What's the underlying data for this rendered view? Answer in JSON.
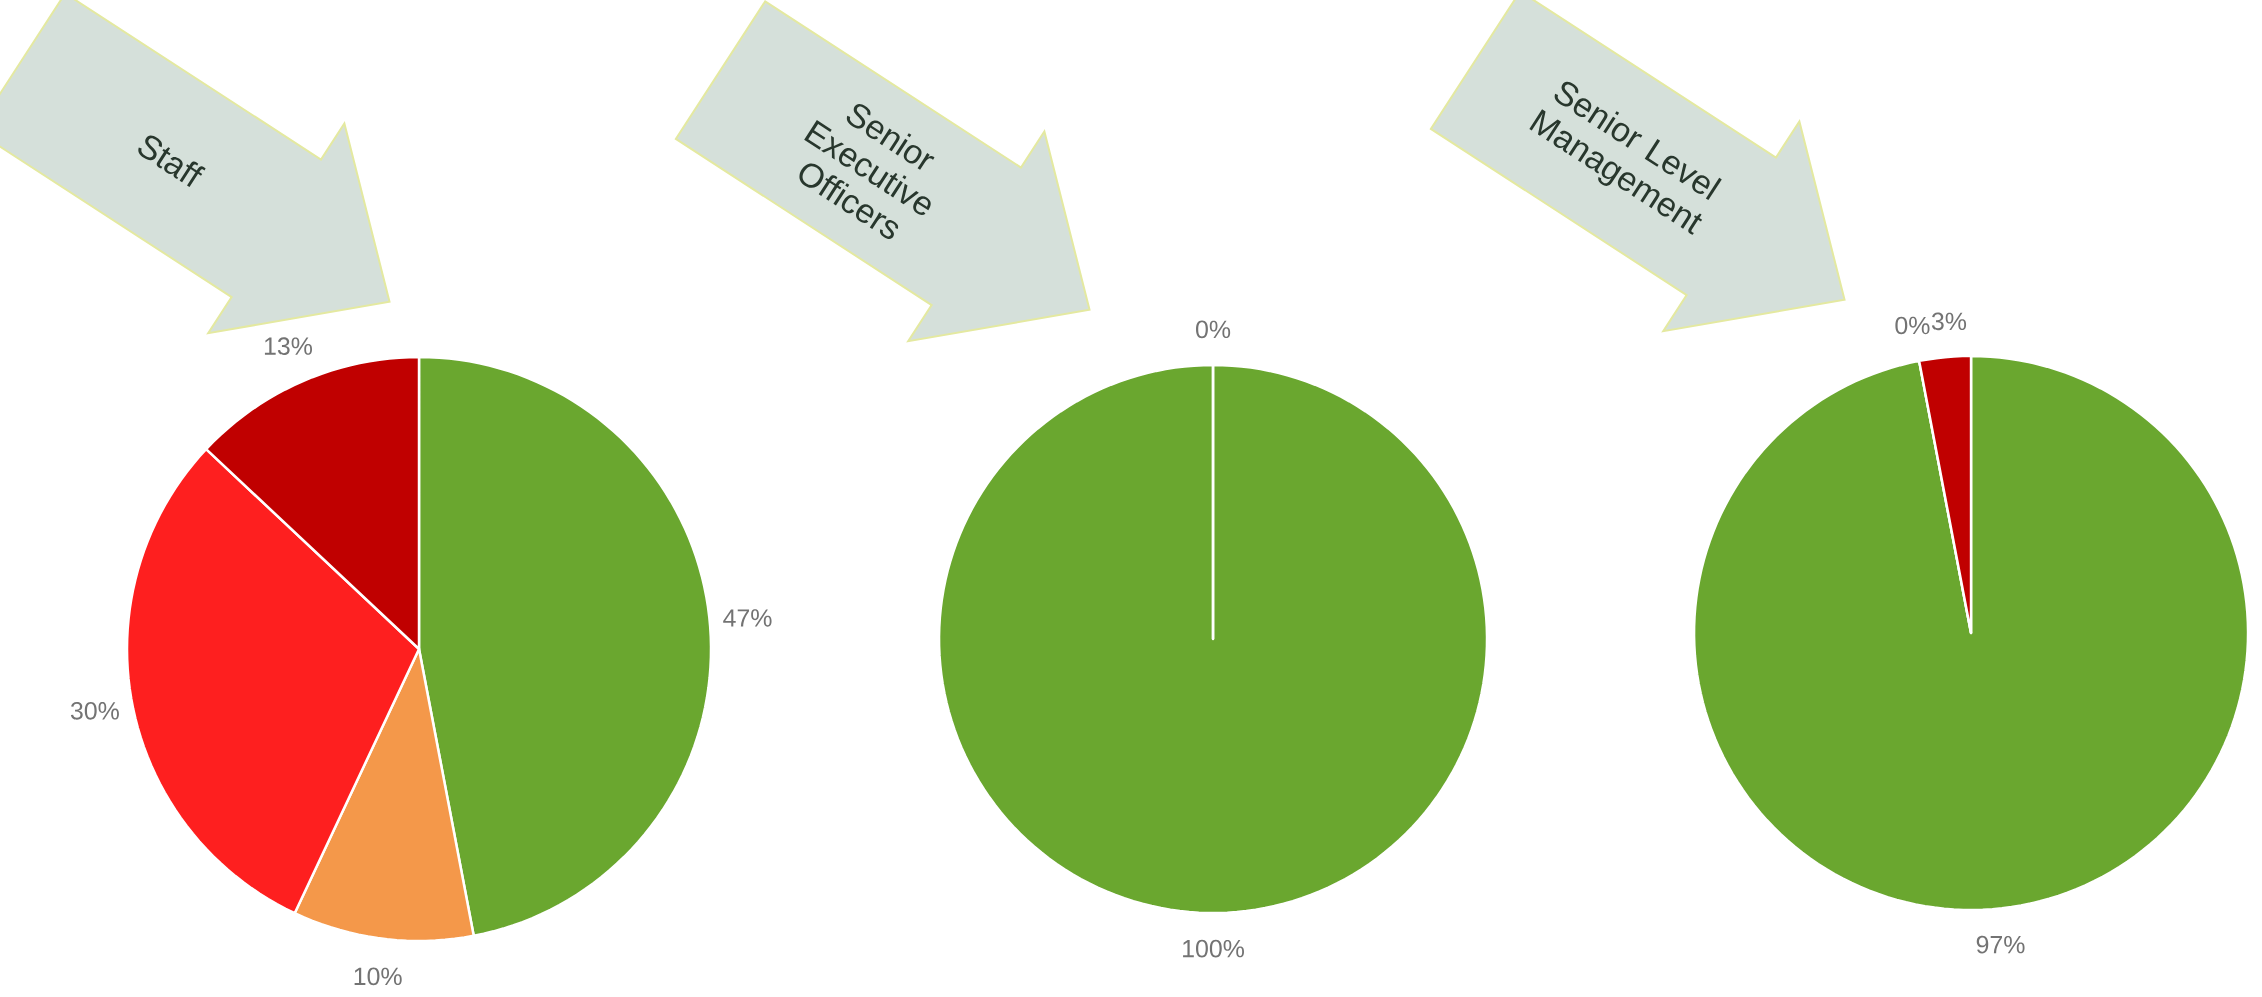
{
  "chart_data": [
    {
      "type": "pie",
      "title": "Staff",
      "categories": [
        null,
        null,
        null,
        null
      ],
      "values": [
        47,
        10,
        30,
        13
      ],
      "colors": [
        "#6aa72f",
        "#f4984a",
        "#fe1f1f",
        "#c00000"
      ],
      "value_labels": [
        "47%",
        "10%",
        "30%",
        "13%"
      ]
    },
    {
      "type": "pie",
      "title": "Senior Executive Officers",
      "categories": [
        null,
        null
      ],
      "values": [
        100,
        0
      ],
      "colors": [
        "#6aa72f",
        "#c00000"
      ],
      "value_labels": [
        "100%",
        "0%"
      ]
    },
    {
      "type": "pie",
      "title": "Senior Level Management",
      "categories": [
        null,
        null,
        null
      ],
      "values": [
        97,
        0,
        3
      ],
      "colors": [
        "#6aa72f",
        "#f4984a",
        "#c00000"
      ],
      "value_labels": [
        "97%",
        "0%",
        "3%"
      ]
    }
  ]
}
